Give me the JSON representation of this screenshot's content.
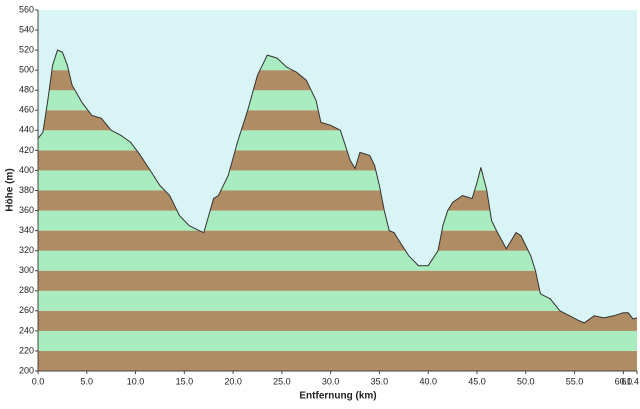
{
  "chart_data": {
    "type": "area",
    "x_label": "Entfernung   (km)",
    "y_label": "Höhe (m)",
    "background": "#d8f4f4",
    "line_color": "#333333",
    "band_colors": [
      "#b08c64",
      "#a8ecc0"
    ],
    "x": [
      0,
      0.5,
      1.0,
      1.5,
      2.0,
      2.5,
      3.0,
      3.5,
      4.5,
      5.5,
      6.5,
      7.5,
      8.5,
      9.5,
      10.5,
      11.5,
      12.5,
      13.5,
      14.5,
      15.5,
      16.5,
      17.0,
      17.5,
      18.0,
      18.5,
      19.5,
      20.5,
      21.5,
      22.5,
      23.5,
      24.5,
      25.5,
      26.5,
      27.5,
      28.5,
      29.0,
      30.0,
      31.0,
      32.0,
      32.5,
      33.0,
      34.0,
      34.5,
      35.0,
      35.5,
      36.0,
      36.5,
      37.0,
      38.0,
      39.0,
      40.0,
      41.0,
      41.5,
      42.0,
      42.5,
      43.5,
      44.5,
      45.0,
      45.4,
      46.0,
      46.5,
      47.0,
      48.0,
      48.5,
      49.0,
      49.5,
      50.5,
      51.0,
      51.5,
      52.5,
      53.5,
      54.5,
      55.5,
      56.0,
      57.0,
      58.0,
      59.0,
      60.0,
      60.5,
      61.0,
      61.4
    ],
    "values": [
      432,
      438,
      470,
      505,
      520,
      518,
      505,
      485,
      468,
      455,
      452,
      440,
      435,
      428,
      415,
      400,
      385,
      375,
      355,
      345,
      340,
      338,
      355,
      372,
      375,
      395,
      430,
      460,
      495,
      515,
      512,
      503,
      498,
      490,
      470,
      448,
      445,
      440,
      410,
      402,
      418,
      415,
      405,
      385,
      360,
      340,
      338,
      330,
      315,
      305,
      305,
      320,
      345,
      360,
      368,
      375,
      372,
      388,
      403,
      380,
      350,
      340,
      322,
      330,
      338,
      335,
      315,
      300,
      277,
      272,
      260,
      255,
      250,
      248,
      255,
      253,
      255,
      258,
      258,
      252,
      253
    ],
    "xlim": [
      0,
      61.4
    ],
    "ylim": [
      200,
      560
    ],
    "xticks": [
      {
        "value": 0,
        "label": "0.0"
      },
      {
        "value": 5,
        "label": "5.0"
      },
      {
        "value": 10,
        "label": "10.0"
      },
      {
        "value": 15,
        "label": "15.0"
      },
      {
        "value": 20,
        "label": "20.0"
      },
      {
        "value": 25,
        "label": "25.0"
      },
      {
        "value": 30,
        "label": "30.0"
      },
      {
        "value": 35,
        "label": "35.0"
      },
      {
        "value": 40,
        "label": "40.0"
      },
      {
        "value": 45,
        "label": "45.0"
      },
      {
        "value": 50,
        "label": "50.0"
      },
      {
        "value": 55,
        "label": "55.0"
      },
      {
        "value": 60,
        "label": "60.0"
      },
      61.4
    ],
    "yticks": [
      200,
      220,
      240,
      260,
      280,
      300,
      320,
      340,
      360,
      380,
      400,
      420,
      440,
      460,
      480,
      500,
      520,
      540,
      560
    ]
  }
}
